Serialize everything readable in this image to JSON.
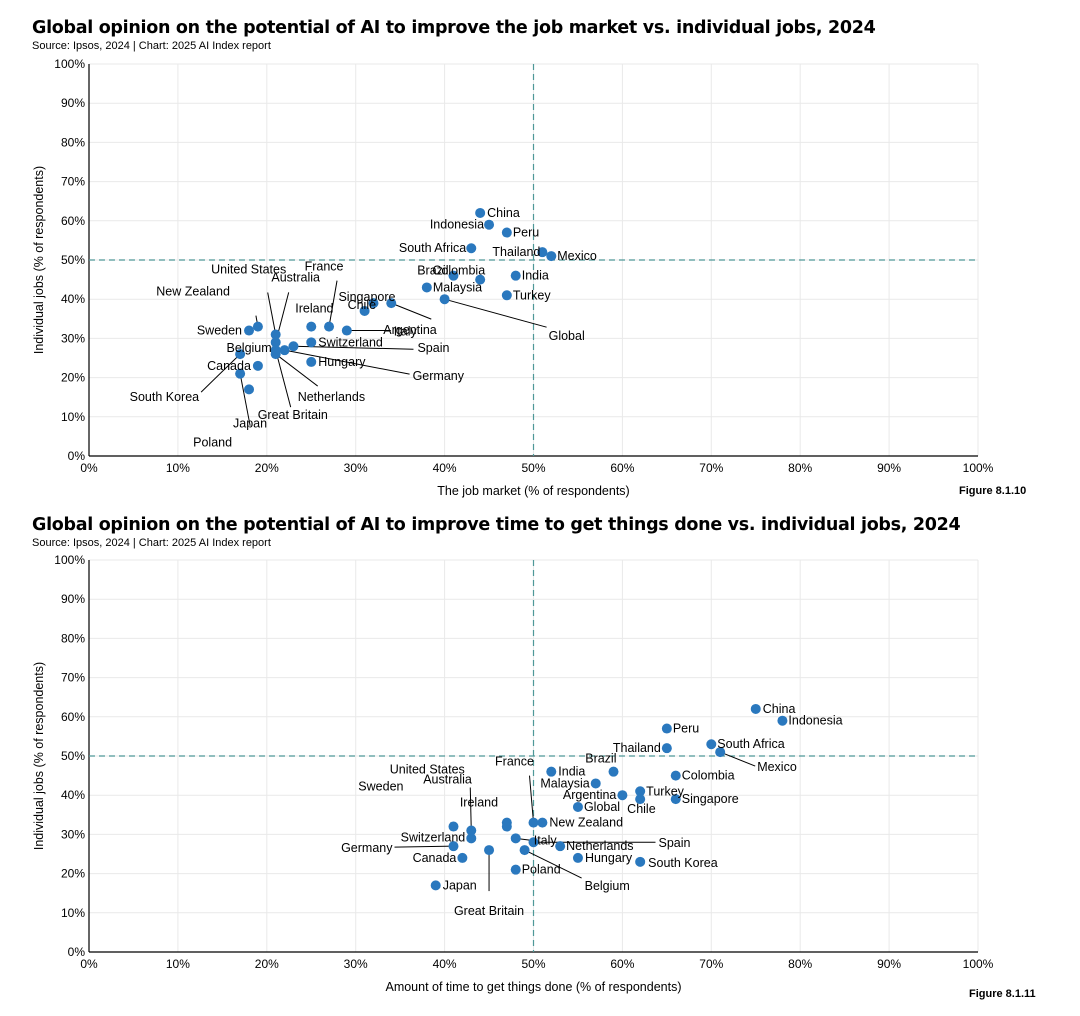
{
  "colors": {
    "point": "#2a78be",
    "ref_line": "#4e9898",
    "grid": "#e9e9e9",
    "axis": "#000000"
  },
  "charts": [
    {
      "title": "Global opinion on the potential of AI to improve the job market vs. individual jobs, 2024",
      "source": "Source: Ipsos, 2024 | Chart: 2025 AI Index report",
      "figure": "Figure 8.1.10"
    },
    {
      "title": "Global opinion on the potential of AI to improve time to get things done vs. individual jobs, 2024",
      "source": "Source: Ipsos, 2024 | Chart: 2025 AI Index report",
      "figure": "Figure 8.1.11"
    }
  ],
  "chart_data": [
    {
      "type": "scatter",
      "title": "Global opinion on the potential of AI to improve the job market vs. individual jobs, 2024",
      "xlabel": "The job market (% of respondents)",
      "ylabel": "Individual jobs (% of respondents)",
      "xlim": [
        0,
        100
      ],
      "ylim": [
        0,
        100
      ],
      "ticks": [
        "0%",
        "10%",
        "20%",
        "30%",
        "40%",
        "50%",
        "60%",
        "70%",
        "80%",
        "90%",
        "100%"
      ],
      "reference_lines": {
        "x": 50,
        "y": 50
      },
      "points": [
        {
          "label": "China",
          "x": 44,
          "y": 62
        },
        {
          "label": "Indonesia",
          "x": 45,
          "y": 59
        },
        {
          "label": "Peru",
          "x": 47,
          "y": 57
        },
        {
          "label": "South Africa",
          "x": 43,
          "y": 53
        },
        {
          "label": "Thailand",
          "x": 51,
          "y": 52
        },
        {
          "label": "Mexico",
          "x": 52,
          "y": 51
        },
        {
          "label": "Brazil",
          "x": 41,
          "y": 46
        },
        {
          "label": "Colombia",
          "x": 44,
          "y": 45
        },
        {
          "label": "India",
          "x": 48,
          "y": 46
        },
        {
          "label": "Malaysia",
          "x": 38,
          "y": 43
        },
        {
          "label": "Turkey",
          "x": 47,
          "y": 41
        },
        {
          "label": "Singapore",
          "x": 32,
          "y": 39
        },
        {
          "label": "Argentina",
          "x": 34,
          "y": 39
        },
        {
          "label": "Chile",
          "x": 31,
          "y": 37
        },
        {
          "label": "Global",
          "x": 40,
          "y": 40
        },
        {
          "label": "France",
          "x": 27,
          "y": 33
        },
        {
          "label": "Ireland",
          "x": 25,
          "y": 33
        },
        {
          "label": "Italy",
          "x": 29,
          "y": 32
        },
        {
          "label": "United States",
          "x": 21,
          "y": 31
        },
        {
          "label": "Australia",
          "x": 21,
          "y": 29
        },
        {
          "label": "New Zealand",
          "x": 19,
          "y": 33
        },
        {
          "label": "Sweden",
          "x": 18,
          "y": 32
        },
        {
          "label": "Belgium",
          "x": 21,
          "y": 27
        },
        {
          "label": "Switzerland",
          "x": 25,
          "y": 29
        },
        {
          "label": "Spain",
          "x": 23,
          "y": 28
        },
        {
          "label": "Germany",
          "x": 22,
          "y": 27
        },
        {
          "label": "Hungary",
          "x": 25,
          "y": 24
        },
        {
          "label": "Netherlands",
          "x": 21,
          "y": 26
        },
        {
          "label": "Great Britain",
          "x": 21,
          "y": 27
        },
        {
          "label": "Canada",
          "x": 19,
          "y": 23
        },
        {
          "label": "South Korea",
          "x": 17,
          "y": 26
        },
        {
          "label": "Japan",
          "x": 18,
          "y": 17
        },
        {
          "label": "Poland",
          "x": 17,
          "y": 21
        }
      ]
    },
    {
      "type": "scatter",
      "title": "Global opinion on the potential of AI to improve time to get things done vs. individual jobs, 2024",
      "xlabel": "Amount of time to get things done (% of respondents)",
      "ylabel": "Individual jobs (% of respondents)",
      "xlim": [
        0,
        100
      ],
      "ylim": [
        0,
        100
      ],
      "ticks": [
        "0%",
        "10%",
        "20%",
        "30%",
        "40%",
        "50%",
        "60%",
        "70%",
        "80%",
        "90%",
        "100%"
      ],
      "reference_lines": {
        "x": 50,
        "y": 50
      },
      "points": [
        {
          "label": "China",
          "x": 75,
          "y": 62
        },
        {
          "label": "Indonesia",
          "x": 78,
          "y": 59
        },
        {
          "label": "Peru",
          "x": 65,
          "y": 57
        },
        {
          "label": "South Africa",
          "x": 70,
          "y": 53
        },
        {
          "label": "Thailand",
          "x": 65,
          "y": 52
        },
        {
          "label": "Mexico",
          "x": 71,
          "y": 51
        },
        {
          "label": "India",
          "x": 52,
          "y": 46
        },
        {
          "label": "Brazil",
          "x": 59,
          "y": 46
        },
        {
          "label": "Colombia",
          "x": 66,
          "y": 45
        },
        {
          "label": "Turkey",
          "x": 62,
          "y": 41
        },
        {
          "label": "Malaysia",
          "x": 57,
          "y": 43
        },
        {
          "label": "Argentina",
          "x": 60,
          "y": 40
        },
        {
          "label": "Chile",
          "x": 62,
          "y": 39
        },
        {
          "label": "Singapore",
          "x": 66,
          "y": 39
        },
        {
          "label": "Global",
          "x": 55,
          "y": 37
        },
        {
          "label": "France",
          "x": 50,
          "y": 33
        },
        {
          "label": "New Zealand",
          "x": 51,
          "y": 33
        },
        {
          "label": "Ireland",
          "x": 47,
          "y": 33
        },
        {
          "label": "Australia",
          "x": 47,
          "y": 32
        },
        {
          "label": "Italy",
          "x": 48,
          "y": 29
        },
        {
          "label": "Spain",
          "x": 50,
          "y": 28
        },
        {
          "label": "Netherlands",
          "x": 53,
          "y": 27
        },
        {
          "label": "United States",
          "x": 43,
          "y": 31
        },
        {
          "label": "Sweden",
          "x": 41,
          "y": 32
        },
        {
          "label": "Switzerland",
          "x": 43,
          "y": 29
        },
        {
          "label": "Germany",
          "x": 41,
          "y": 27
        },
        {
          "label": "Canada",
          "x": 42,
          "y": 24
        },
        {
          "label": "Hungary",
          "x": 55,
          "y": 24
        },
        {
          "label": "South Korea",
          "x": 62,
          "y": 23
        },
        {
          "label": "Belgium",
          "x": 49,
          "y": 26
        },
        {
          "label": "Poland",
          "x": 48,
          "y": 21
        },
        {
          "label": "Great Britain",
          "x": 45,
          "y": 26
        },
        {
          "label": "Japan",
          "x": 39,
          "y": 17
        }
      ]
    }
  ]
}
